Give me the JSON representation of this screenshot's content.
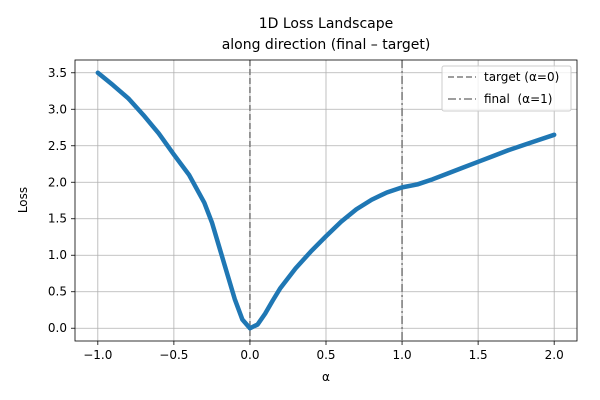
{
  "chart_data": {
    "type": "line",
    "title_lines": [
      "1D Loss Landscape",
      "along direction (final – target)"
    ],
    "xlabel": "α",
    "ylabel": "Loss",
    "xlim": [
      -1.15,
      2.15
    ],
    "ylim": [
      -0.175,
      3.675
    ],
    "xticks": [
      -1.0,
      -0.5,
      0.0,
      0.5,
      1.0,
      1.5,
      2.0
    ],
    "xtick_labels": [
      "−1.0",
      "−0.5",
      "0.0",
      "0.5",
      "1.0",
      "1.5",
      "2.0"
    ],
    "yticks": [
      0.0,
      0.5,
      1.0,
      1.5,
      2.0,
      2.5,
      3.0,
      3.5
    ],
    "ytick_labels": [
      "0.0",
      "0.5",
      "1.0",
      "1.5",
      "2.0",
      "2.5",
      "3.0",
      "3.5"
    ],
    "grid": true,
    "legend_position": "top-right",
    "series": [
      {
        "color": "#1f77b4",
        "x": [
          -1.0,
          -0.9,
          -0.8,
          -0.7,
          -0.6,
          -0.5,
          -0.4,
          -0.3,
          -0.25,
          -0.2,
          -0.15,
          -0.1,
          -0.05,
          0.0,
          0.05,
          0.1,
          0.15,
          0.2,
          0.3,
          0.4,
          0.5,
          0.6,
          0.7,
          0.8,
          0.9,
          1.0,
          1.1,
          1.2,
          1.3,
          1.4,
          1.5,
          1.6,
          1.7,
          1.8,
          1.9,
          2.0
        ],
        "y": [
          3.5,
          3.33,
          3.15,
          2.92,
          2.67,
          2.38,
          2.1,
          1.72,
          1.45,
          1.1,
          0.75,
          0.4,
          0.12,
          0.0,
          0.05,
          0.2,
          0.38,
          0.55,
          0.82,
          1.05,
          1.26,
          1.46,
          1.63,
          1.76,
          1.86,
          1.93,
          1.97,
          2.04,
          2.12,
          2.2,
          2.28,
          2.36,
          2.44,
          2.51,
          2.58,
          2.65
        ]
      }
    ],
    "vlines": [
      {
        "x": 0,
        "label": "target (α=0)",
        "style": "dashed",
        "color": "#7f7f7f"
      },
      {
        "x": 1,
        "label": "final  (α=1)",
        "style": "dashdot",
        "color": "#7f7f7f"
      }
    ]
  }
}
